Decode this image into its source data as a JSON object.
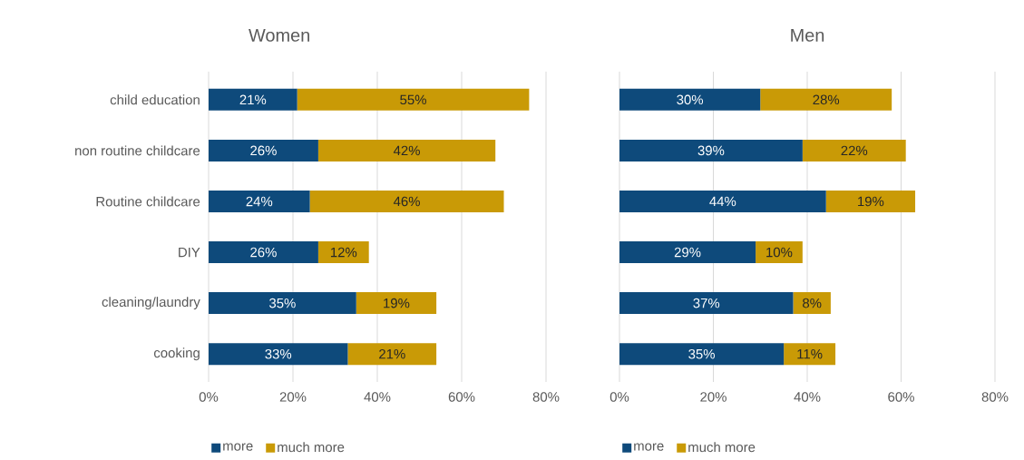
{
  "chart_data": [
    {
      "type": "bar",
      "orientation": "horizontal",
      "stacked": true,
      "title": "Women",
      "categories": [
        "child education",
        "non routine childcare",
        "Routine childcare",
        "DIY",
        "cleaning/laundry",
        "cooking"
      ],
      "series": [
        {
          "name": "more",
          "color": "#0e4a7b",
          "values": [
            21,
            26,
            24,
            26,
            35,
            33
          ],
          "value_labels": [
            "21%",
            "26%",
            "24%",
            "26%",
            "35%",
            "33%"
          ]
        },
        {
          "name": "much more",
          "color": "#c99a06",
          "values": [
            55,
            42,
            46,
            12,
            19,
            21
          ],
          "value_labels": [
            "55%",
            "42%",
            "46%",
            "12%",
            "19%",
            "21%"
          ]
        }
      ],
      "xlim": [
        0,
        80
      ],
      "xticks": [
        {
          "value": 0,
          "label": "0%"
        },
        {
          "value": 20,
          "label": "20%"
        },
        {
          "value": 40,
          "label": "40%"
        },
        {
          "value": 60,
          "label": "60%"
        },
        {
          "value": 80,
          "label": "80%"
        }
      ],
      "grid": "x",
      "legend": "bottom"
    },
    {
      "type": "bar",
      "orientation": "horizontal",
      "stacked": true,
      "title": "Men",
      "categories": [
        null,
        null,
        null,
        null,
        null,
        null
      ],
      "series": [
        {
          "name": "more",
          "color": "#0e4a7b",
          "values": [
            30,
            39,
            44,
            29,
            37,
            35
          ],
          "value_labels": [
            "30%",
            "39%",
            "44%",
            "29%",
            "37%",
            "35%"
          ]
        },
        {
          "name": "much more",
          "color": "#c99a06",
          "values": [
            28,
            22,
            19,
            10,
            8,
            11
          ],
          "value_labels": [
            "28%",
            "22%",
            "19%",
            "10%",
            "8%",
            "11%"
          ]
        }
      ],
      "xlim": [
        0,
        80
      ],
      "xticks": [
        {
          "value": 0,
          "label": "0%"
        },
        {
          "value": 20,
          "label": "20%"
        },
        {
          "value": 40,
          "label": "40%"
        },
        {
          "value": 60,
          "label": "60%"
        },
        {
          "value": 80,
          "label": "80%"
        }
      ],
      "grid": "x",
      "legend": "bottom",
      "tick_labels": "x"
    }
  ]
}
